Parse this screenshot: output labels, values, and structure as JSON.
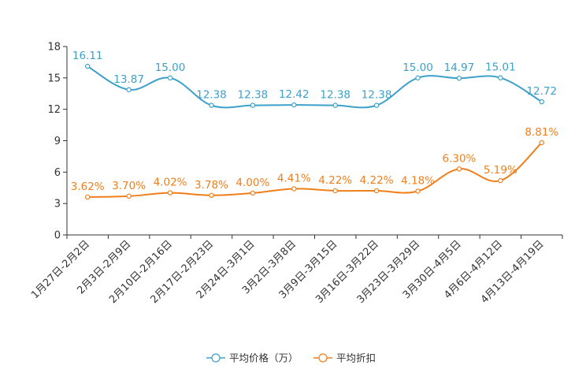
{
  "chart_data": {
    "type": "line",
    "title": "",
    "xlabel": "",
    "ylabel": "",
    "ylim": [
      0,
      18
    ],
    "yticks": [
      "0",
      "3",
      "6",
      "9",
      "12",
      "15",
      "18"
    ],
    "categories": [
      "1月27日-2月2日",
      "2月3日-2月9日",
      "2月10日-2月16日",
      "2月17日-2月23日",
      "2月24日-3月1日",
      "3月2日-3月8日",
      "3月9日-3月15日",
      "3月16日-3月22日",
      "3月23日-3月29日",
      "3月30日-4月5日",
      "4月6日-4月12日",
      "4月13日-4月19日"
    ],
    "grid": false,
    "legend_position": "bottom-center",
    "series": [
      {
        "name": "平均价格（万）",
        "color": "#3da1c9",
        "values": [
          16.11,
          13.87,
          15.0,
          12.38,
          12.38,
          12.42,
          12.38,
          12.38,
          15.0,
          14.97,
          15.01,
          12.72
        ],
        "labels": [
          "16.11",
          "13.87",
          "15.00",
          "12.38",
          "12.38",
          "12.42",
          "12.38",
          "12.38",
          "15.00",
          "14.97",
          "15.01",
          "12.72"
        ]
      },
      {
        "name": "平均折扣",
        "color": "#f07f1b",
        "values": [
          3.62,
          3.7,
          4.02,
          3.78,
          4.0,
          4.41,
          4.22,
          4.22,
          4.18,
          6.3,
          5.19,
          8.81
        ],
        "labels": [
          "3.62%",
          "3.70%",
          "4.02%",
          "3.78%",
          "4.00%",
          "4.41%",
          "4.22%",
          "4.22%",
          "4.18%",
          "6.30%",
          "5.19%",
          "8.81%"
        ]
      }
    ]
  }
}
